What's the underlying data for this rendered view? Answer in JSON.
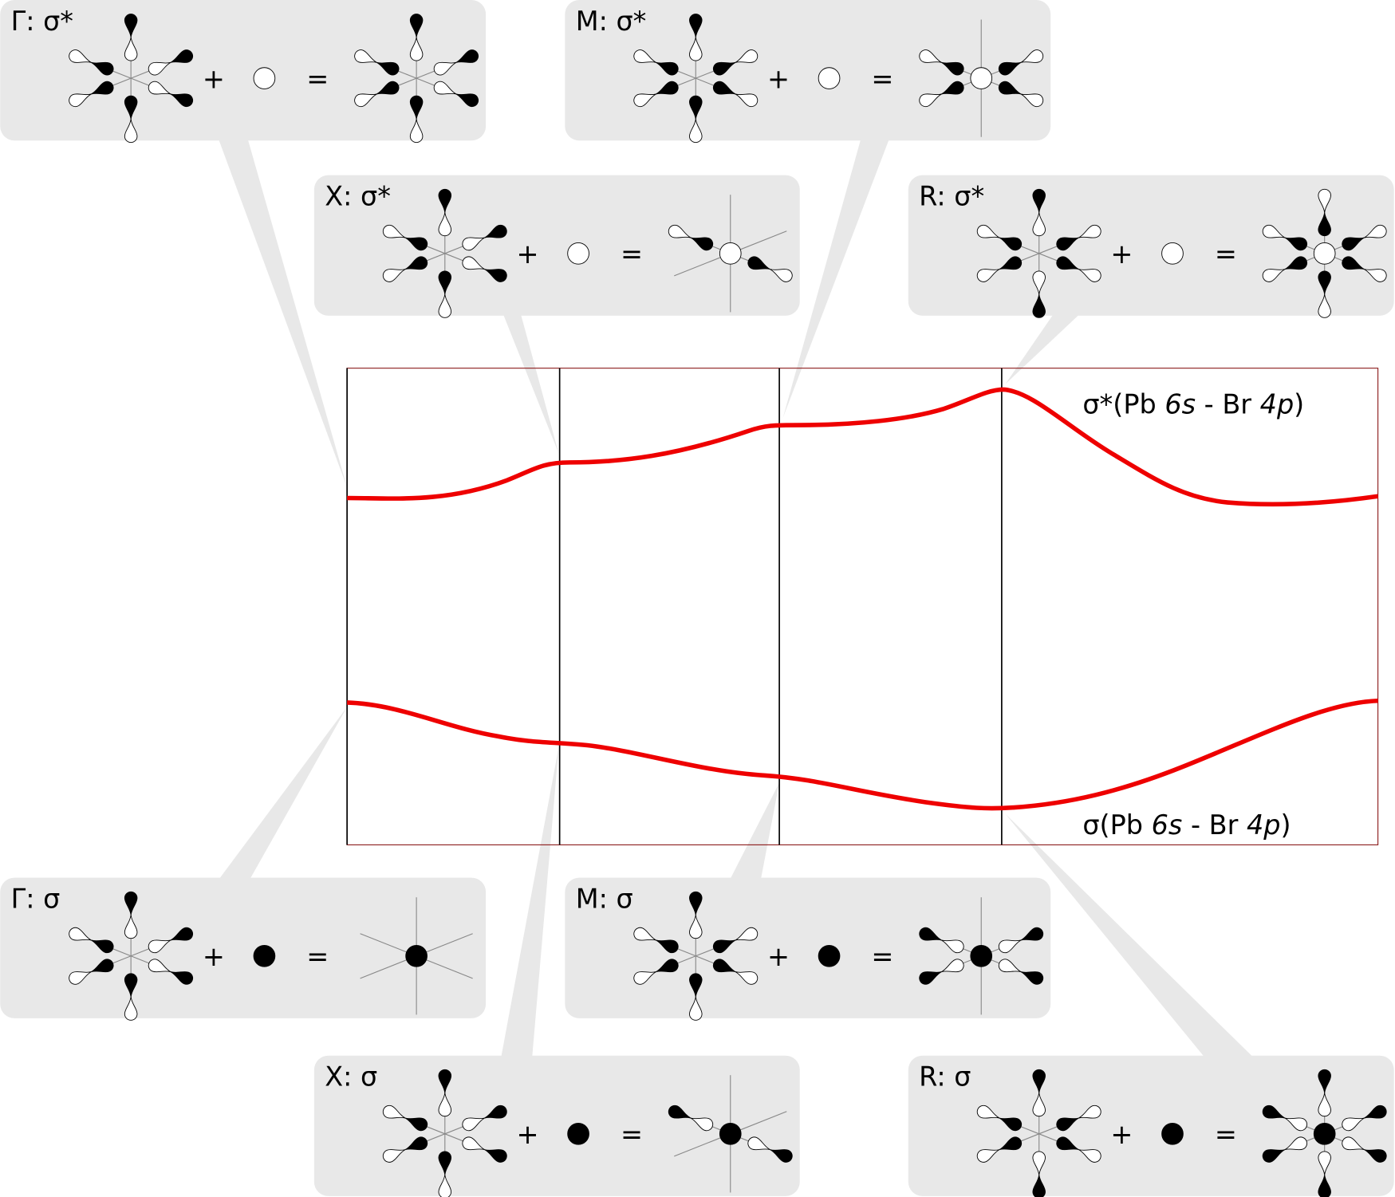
{
  "panels": [
    {
      "label": "Γ: σ*"
    },
    {
      "label": "M: σ*"
    },
    {
      "label": "X: σ*"
    },
    {
      "label": "R: σ*"
    },
    {
      "label": "Γ: σ"
    },
    {
      "label": "M: σ"
    },
    {
      "label": "X: σ"
    },
    {
      "label": "R: σ"
    }
  ],
  "operators": {
    "plus": "+",
    "equals": "="
  },
  "bands": [
    {
      "parts": [
        {
          "text": "σ*(Pb "
        },
        {
          "text": "6s",
          "italic": true
        },
        {
          "text": " - Br "
        },
        {
          "text": "4p",
          "italic": true
        },
        {
          "text": ")"
        }
      ]
    },
    {
      "parts": [
        {
          "text": "σ(Pb "
        },
        {
          "text": "6s",
          "italic": true
        },
        {
          "text": " - Br "
        },
        {
          "text": "4p",
          "italic": true
        },
        {
          "text": ")"
        }
      ]
    }
  ]
}
